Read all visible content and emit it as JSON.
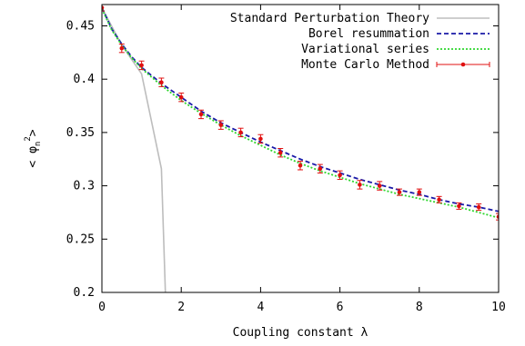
{
  "chart_data": {
    "type": "line",
    "xlabel": "Coupling constant λ",
    "ylabel_main": "< φ",
    "ylabel_sub": "n",
    "ylabel_sup": "2",
    "ylabel_close": ">",
    "xlim": [
      0,
      10
    ],
    "ylim": [
      0.2,
      0.47
    ],
    "xticks": [
      0,
      2,
      4,
      6,
      8,
      10
    ],
    "xtick_labels": [
      "0",
      "2",
      "4",
      "6",
      "8",
      "10"
    ],
    "yticks": [
      0.2,
      0.25,
      0.3,
      0.35,
      0.4,
      0.45
    ],
    "ytick_labels": [
      "0.2",
      "0.25",
      "0.3",
      "0.35",
      "0.4",
      "0.45"
    ],
    "grid": false,
    "legend_position": "top-right",
    "series": [
      {
        "name": "Standard Perturbation Theory",
        "style": "solid",
        "color": "#bdbdbd",
        "x": [
          0,
          0.5,
          1.0,
          1.5,
          1.6
        ],
        "y": [
          0.467,
          0.432,
          0.405,
          0.316,
          0.2
        ]
      },
      {
        "name": "Borel resummation",
        "style": "dashed",
        "color": "#1a1aa8",
        "x": [
          0,
          0.25,
          0.5,
          0.75,
          1.0,
          1.5,
          2.0,
          2.5,
          3.0,
          3.5,
          4.0,
          4.5,
          5.0,
          5.5,
          6.0,
          6.5,
          7.0,
          7.5,
          8.0,
          8.5,
          9.0,
          9.5,
          10.0
        ],
        "y": [
          0.467,
          0.447,
          0.433,
          0.421,
          0.411,
          0.396,
          0.383,
          0.37,
          0.359,
          0.35,
          0.341,
          0.333,
          0.325,
          0.318,
          0.312,
          0.306,
          0.301,
          0.296,
          0.292,
          0.287,
          0.283,
          0.28,
          0.276
        ]
      },
      {
        "name": "Variational series",
        "style": "dotted",
        "color": "#2fd62f",
        "x": [
          0,
          0.25,
          0.5,
          0.75,
          1.0,
          1.5,
          2.0,
          2.5,
          3.0,
          3.5,
          4.0,
          4.5,
          5.0,
          5.5,
          6.0,
          6.5,
          7.0,
          7.5,
          8.0,
          8.5,
          9.0,
          9.5,
          10.0
        ],
        "y": [
          0.466,
          0.446,
          0.432,
          0.42,
          0.41,
          0.394,
          0.38,
          0.368,
          0.357,
          0.347,
          0.338,
          0.329,
          0.321,
          0.314,
          0.308,
          0.302,
          0.297,
          0.292,
          0.288,
          0.284,
          0.28,
          0.275,
          0.27
        ]
      },
      {
        "name": "Monte Carlo Method",
        "style": "points-errorbars",
        "color": "#e01010",
        "x": [
          0,
          0.5,
          1.0,
          1.5,
          2.0,
          2.5,
          3.0,
          3.5,
          4.0,
          4.5,
          5.0,
          5.5,
          6.0,
          6.5,
          7.0,
          7.5,
          8.0,
          8.5,
          9.0,
          9.5,
          10.0
        ],
        "y": [
          0.467,
          0.429,
          0.413,
          0.397,
          0.383,
          0.367,
          0.357,
          0.35,
          0.344,
          0.331,
          0.319,
          0.316,
          0.31,
          0.301,
          0.3,
          0.294,
          0.294,
          0.287,
          0.281,
          0.28,
          0.271
        ],
        "err": [
          0.003,
          0.004,
          0.004,
          0.004,
          0.004,
          0.004,
          0.004,
          0.004,
          0.004,
          0.004,
          0.004,
          0.004,
          0.004,
          0.004,
          0.004,
          0.003,
          0.003,
          0.003,
          0.003,
          0.003,
          0.003
        ]
      }
    ]
  }
}
